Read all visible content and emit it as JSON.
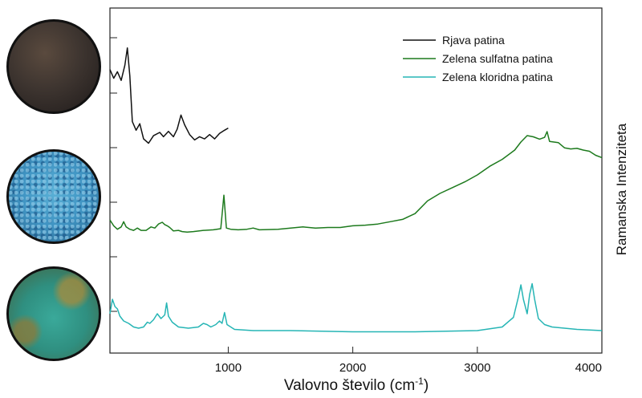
{
  "chart_data": {
    "type": "line",
    "xlabel_main": "Valovno število (cm",
    "xlabel_sup": "-1",
    "xlabel_close": ")",
    "ylabel": "Ramanska Intenziteta",
    "xlim": [
      50,
      4000
    ],
    "x_ticks": [
      {
        "value": 1000,
        "label": "1000"
      },
      {
        "value": 2000,
        "label": "2000"
      },
      {
        "value": 3000,
        "label": "3000"
      },
      {
        "value": 4000,
        "label": "4000"
      }
    ],
    "legend_position": "top-right",
    "series": [
      {
        "name": "Rjava patina",
        "color": "#111111",
        "points": [
          [
            50,
            0.78
          ],
          [
            80,
            0.7
          ],
          [
            110,
            0.76
          ],
          [
            140,
            0.68
          ],
          [
            170,
            0.82
          ],
          [
            190,
            0.98
          ],
          [
            210,
            0.72
          ],
          [
            230,
            0.3
          ],
          [
            260,
            0.22
          ],
          [
            290,
            0.28
          ],
          [
            320,
            0.14
          ],
          [
            360,
            0.1
          ],
          [
            400,
            0.17
          ],
          [
            450,
            0.2
          ],
          [
            480,
            0.16
          ],
          [
            520,
            0.21
          ],
          [
            560,
            0.16
          ],
          [
            590,
            0.23
          ],
          [
            620,
            0.36
          ],
          [
            650,
            0.27
          ],
          [
            690,
            0.18
          ],
          [
            730,
            0.13
          ],
          [
            770,
            0.16
          ],
          [
            810,
            0.14
          ],
          [
            850,
            0.18
          ],
          [
            890,
            0.14
          ],
          [
            930,
            0.19
          ],
          [
            970,
            0.22
          ],
          [
            1000,
            0.24
          ]
        ]
      },
      {
        "name": "Zelena sulfatna patina",
        "color": "#1d7a1d",
        "points": [
          [
            50,
            0.22
          ],
          [
            80,
            0.12
          ],
          [
            110,
            0.06
          ],
          [
            140,
            0.1
          ],
          [
            160,
            0.19
          ],
          [
            180,
            0.1
          ],
          [
            210,
            0.06
          ],
          [
            240,
            0.04
          ],
          [
            270,
            0.08
          ],
          [
            300,
            0.04
          ],
          [
            340,
            0.04
          ],
          [
            380,
            0.1
          ],
          [
            410,
            0.08
          ],
          [
            440,
            0.15
          ],
          [
            470,
            0.18
          ],
          [
            490,
            0.14
          ],
          [
            510,
            0.12
          ],
          [
            530,
            0.09
          ],
          [
            560,
            0.03
          ],
          [
            600,
            0.04
          ],
          [
            630,
            0.02
          ],
          [
            670,
            0.01
          ],
          [
            720,
            0.02
          ],
          [
            800,
            0.04
          ],
          [
            880,
            0.05
          ],
          [
            940,
            0.07
          ],
          [
            965,
            0.65
          ],
          [
            985,
            0.08
          ],
          [
            1020,
            0.06
          ],
          [
            1080,
            0.05
          ],
          [
            1150,
            0.06
          ],
          [
            1200,
            0.08
          ],
          [
            1250,
            0.05
          ],
          [
            1400,
            0.06
          ],
          [
            1600,
            0.1
          ],
          [
            1700,
            0.08
          ],
          [
            1800,
            0.09
          ],
          [
            1900,
            0.09
          ],
          [
            2000,
            0.12
          ],
          [
            2100,
            0.13
          ],
          [
            2200,
            0.15
          ],
          [
            2300,
            0.19
          ],
          [
            2400,
            0.23
          ],
          [
            2500,
            0.33
          ],
          [
            2600,
            0.55
          ],
          [
            2700,
            0.68
          ],
          [
            2800,
            0.78
          ],
          [
            2900,
            0.88
          ],
          [
            3000,
            1.0
          ],
          [
            3100,
            1.15
          ],
          [
            3200,
            1.27
          ],
          [
            3300,
            1.43
          ],
          [
            3350,
            1.57
          ],
          [
            3400,
            1.68
          ],
          [
            3450,
            1.66
          ],
          [
            3500,
            1.62
          ],
          [
            3540,
            1.65
          ],
          [
            3560,
            1.75
          ],
          [
            3580,
            1.58
          ],
          [
            3650,
            1.56
          ],
          [
            3700,
            1.47
          ],
          [
            3750,
            1.45
          ],
          [
            3800,
            1.46
          ],
          [
            3850,
            1.43
          ],
          [
            3900,
            1.41
          ],
          [
            3950,
            1.34
          ],
          [
            4000,
            1.3
          ]
        ]
      },
      {
        "name": "Zelena kloridna patina",
        "color": "#26b5b5",
        "points": [
          [
            50,
            0.14
          ],
          [
            70,
            0.26
          ],
          [
            90,
            0.2
          ],
          [
            110,
            0.18
          ],
          [
            130,
            0.12
          ],
          [
            160,
            0.08
          ],
          [
            200,
            0.06
          ],
          [
            240,
            0.03
          ],
          [
            280,
            0.02
          ],
          [
            320,
            0.03
          ],
          [
            350,
            0.07
          ],
          [
            370,
            0.06
          ],
          [
            400,
            0.09
          ],
          [
            430,
            0.14
          ],
          [
            460,
            0.1
          ],
          [
            490,
            0.13
          ],
          [
            505,
            0.23
          ],
          [
            520,
            0.12
          ],
          [
            550,
            0.07
          ],
          [
            600,
            0.03
          ],
          [
            680,
            0.02
          ],
          [
            760,
            0.03
          ],
          [
            800,
            0.06
          ],
          [
            830,
            0.05
          ],
          [
            860,
            0.03
          ],
          [
            900,
            0.05
          ],
          [
            930,
            0.08
          ],
          [
            950,
            0.06
          ],
          [
            970,
            0.15
          ],
          [
            990,
            0.05
          ],
          [
            1050,
            0.01
          ],
          [
            1200,
            0.0
          ],
          [
            1500,
            0.0
          ],
          [
            2000,
            -0.01
          ],
          [
            2500,
            -0.01
          ],
          [
            3000,
            0.0
          ],
          [
            3200,
            0.03
          ],
          [
            3290,
            0.11
          ],
          [
            3330,
            0.28
          ],
          [
            3350,
            0.38
          ],
          [
            3370,
            0.26
          ],
          [
            3400,
            0.14
          ],
          [
            3420,
            0.3
          ],
          [
            3440,
            0.39
          ],
          [
            3460,
            0.26
          ],
          [
            3490,
            0.1
          ],
          [
            3540,
            0.05
          ],
          [
            3600,
            0.03
          ],
          [
            3800,
            0.01
          ],
          [
            4000,
            0.0
          ]
        ]
      }
    ]
  },
  "photos": [
    {
      "name": "Rjava patina",
      "color": "#3e3530"
    },
    {
      "name": "Zelena sulfatna patina",
      "color": "#3f93c2"
    },
    {
      "name": "Zelena kloridna patina",
      "color": "#2f8f80"
    }
  ]
}
